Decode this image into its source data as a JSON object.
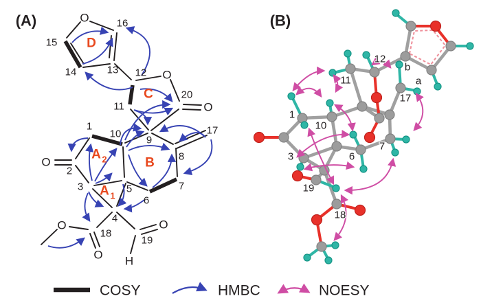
{
  "panel_a": {
    "label": "(A)",
    "atom_labels": {
      "c1": "1",
      "c2": "2",
      "c3": "3",
      "c4": "4",
      "c5": "5",
      "c6": "6",
      "c7": "7",
      "c8": "8",
      "c9": "9",
      "c10": "10",
      "c11": "11",
      "c12": "12",
      "c13": "13",
      "c14": "14",
      "c15": "15",
      "c16": "16",
      "c17": "17",
      "c18": "18",
      "c19": "19",
      "c20": "20",
      "o_furan": "O",
      "o_lactone": "O",
      "o_20": "O",
      "o_2": "O",
      "o_ester": "O",
      "o_ester_carbonyl": "O",
      "o_19": "O",
      "h_19": "H"
    },
    "ring_labels": {
      "d": "D",
      "c": "C",
      "b": "B",
      "a1_base": "A",
      "a1_sub": "1",
      "a2_base": "A",
      "a2_sub": "2"
    }
  },
  "panel_b": {
    "label": "(B)",
    "atom_labels": {
      "c1": "1",
      "c3": "3",
      "c6": "6",
      "c7": "7",
      "c10": "10",
      "c11": "11",
      "c12": "12",
      "c17": "17",
      "c18": "18",
      "c19": "19",
      "h_a": "a",
      "h_b": "b"
    }
  },
  "legend": {
    "cosy": "COSY",
    "hmbc": "HMBC",
    "noesy": "NOESY"
  },
  "colors": {
    "ink": "#231f20",
    "hmbc_blue": "#3743b3",
    "noesy_magenta": "#cf4da4",
    "ring_label_red": "#e8491f",
    "carbon_gray": "#9c9c9c",
    "oxygen_red": "#e8312a",
    "hydrogen_teal": "#2fb6a6"
  }
}
